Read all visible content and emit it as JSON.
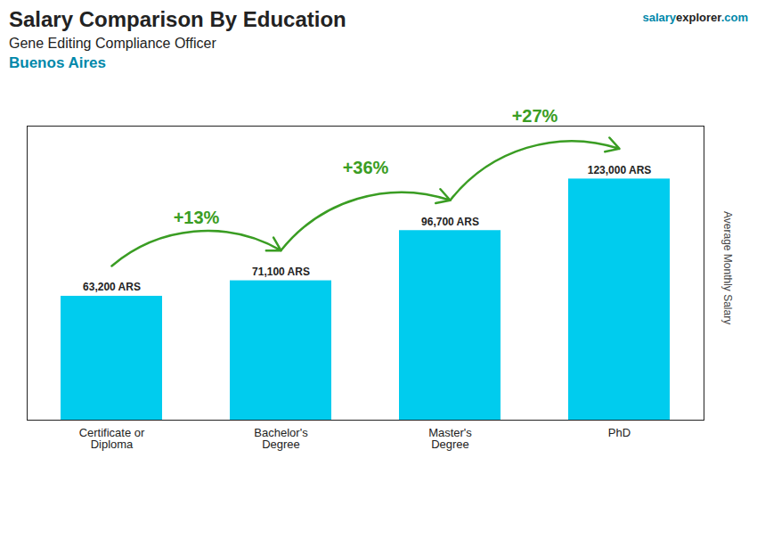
{
  "chart_data": {
    "type": "bar",
    "title": "Salary Comparison By Education",
    "subtitle": "Gene Editing Compliance Officer",
    "ylabel": "Average Monthly Salary",
    "categories": [
      "Certificate or\nDiploma",
      "Bachelor's\nDegree",
      "Master's\nDegree",
      "PhD"
    ],
    "values": [
      63200,
      71100,
      96700,
      123000
    ],
    "value_labels": [
      "63,200 ARS",
      "71,100 ARS",
      "96,700 ARS",
      "123,000 ARS"
    ],
    "data_labels": true,
    "color": "#00ccee",
    "ylim": [
      0,
      150000
    ],
    "tick_labels": "x",
    "grid": false,
    "annotations": [
      {
        "text": "+13%",
        "from": 0,
        "to": 1
      },
      {
        "text": "+36%",
        "from": 1,
        "to": 2
      },
      {
        "text": "+27%",
        "from": 2,
        "to": 3
      },
      {
        "text": "Buenos Aires"
      },
      {
        "text": "salary"
      },
      {
        "text": "explorer"
      },
      {
        "text": ".com"
      }
    ]
  }
}
